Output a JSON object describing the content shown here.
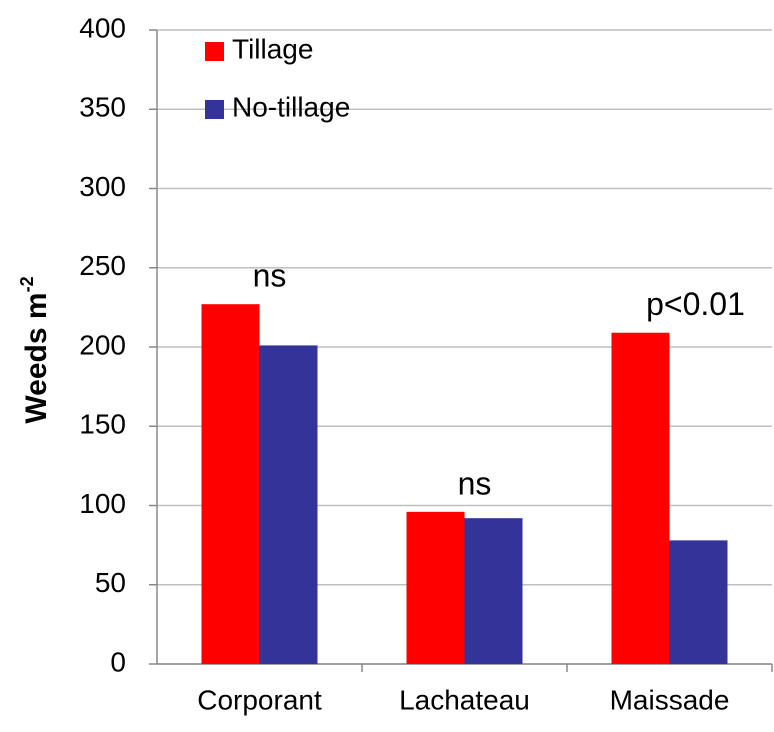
{
  "chart_data": {
    "type": "bar",
    "ylabel": "Weeds m",
    "ylabel_sup": "-2",
    "categories": [
      "Corporant",
      "Lachateau",
      "Maissade"
    ],
    "series": [
      {
        "name": "Tillage",
        "color": "#ff0000",
        "values": [
          227,
          96,
          209
        ]
      },
      {
        "name": "No-tillage",
        "color": "#333399",
        "values": [
          201,
          92,
          78
        ]
      }
    ],
    "annotations": [
      "ns",
      "ns",
      "p<0.01"
    ],
    "ylim": [
      0,
      400
    ],
    "yticks": [
      0,
      50,
      100,
      150,
      200,
      250,
      300,
      350,
      400
    ],
    "grid": true,
    "legend": "upper left"
  }
}
